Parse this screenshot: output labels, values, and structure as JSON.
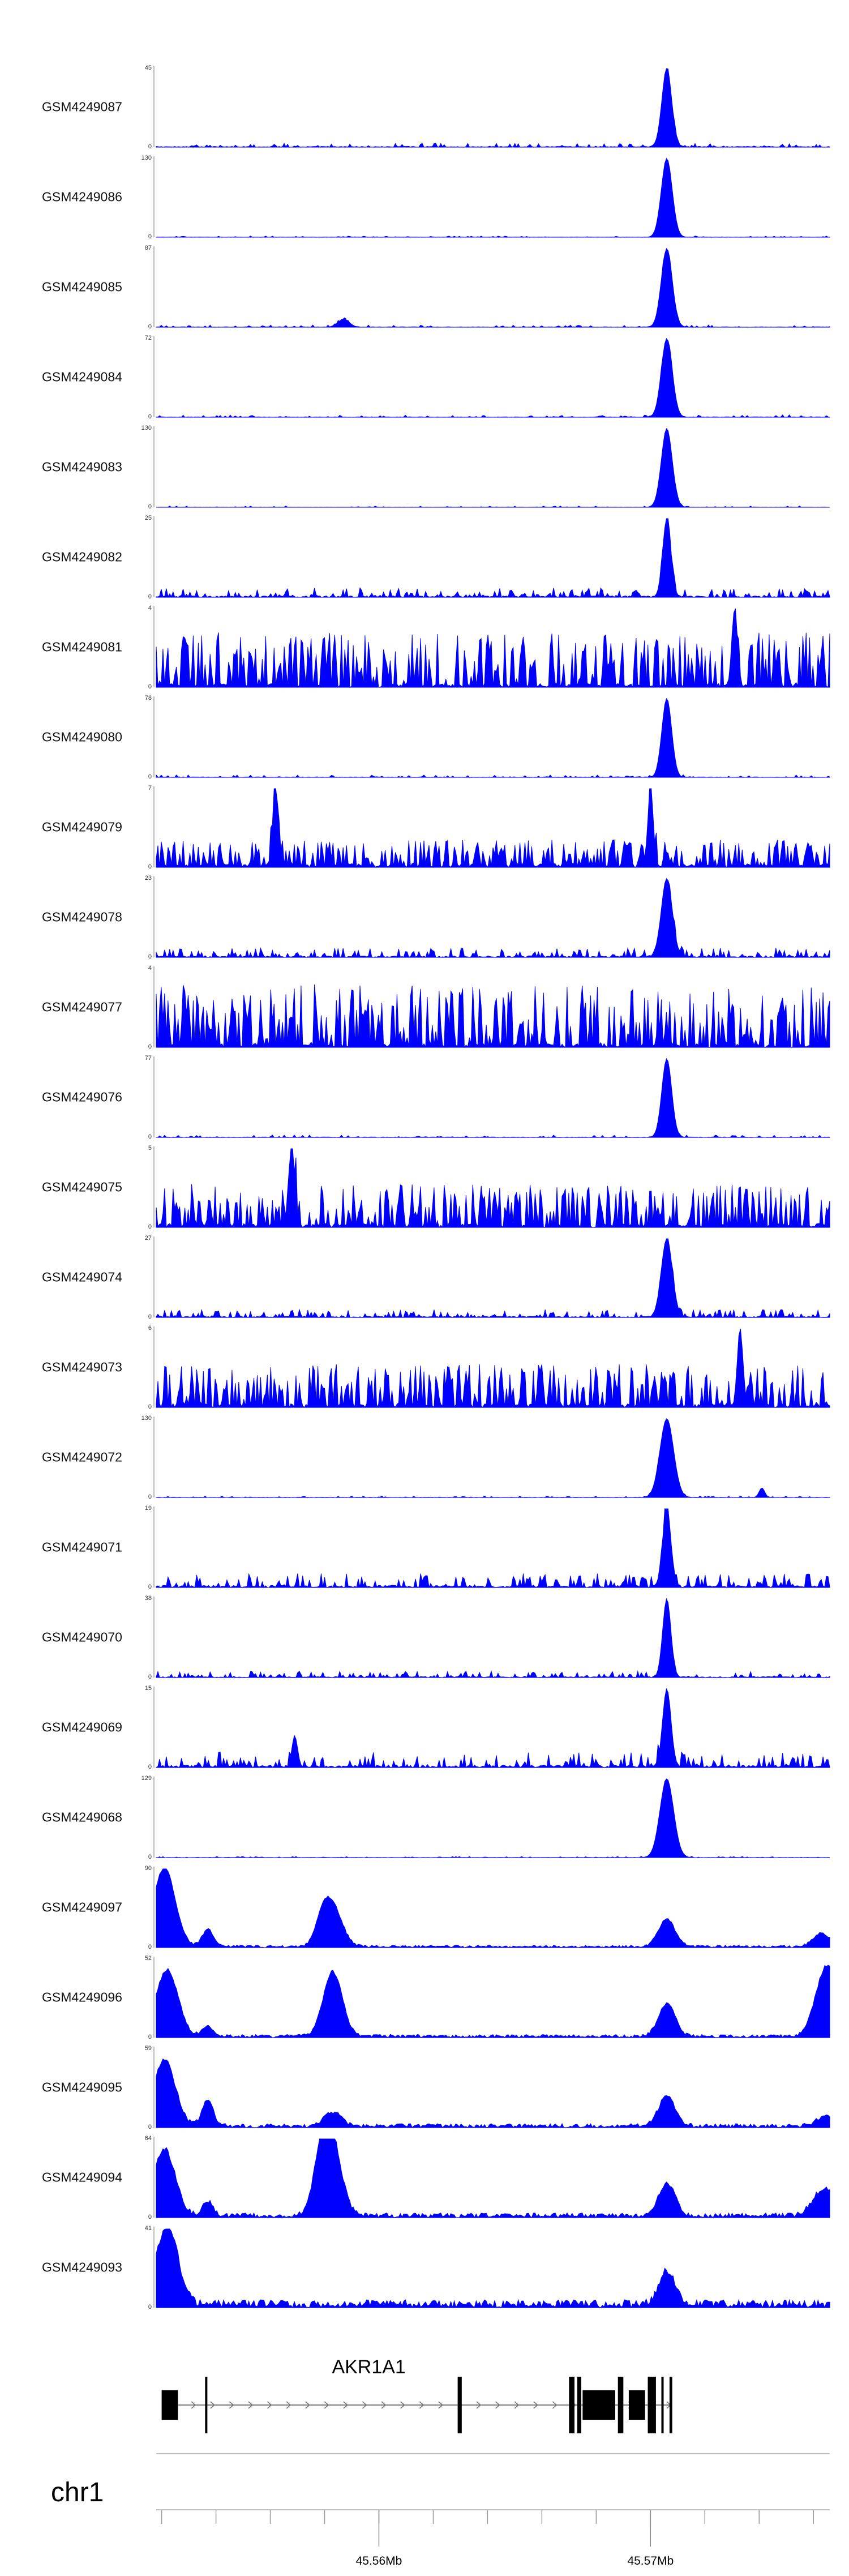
{
  "chart_data": {
    "type": "area",
    "color": "#0000ff",
    "x_range": [
      45.5518,
      45.5766
    ],
    "gene": {
      "name": "AKR1A1",
      "strand": "+",
      "exons": [
        [
          45.552,
          45.5526
        ],
        [
          45.5536,
          45.55365
        ],
        [
          45.5629,
          45.56305
        ],
        [
          45.567,
          45.5672
        ],
        [
          45.5673,
          45.56745
        ],
        [
          45.5675,
          45.5687
        ],
        [
          45.5688,
          45.569
        ],
        [
          45.5692,
          45.5698
        ],
        [
          45.5699,
          45.5702
        ],
        [
          45.5704,
          45.57045
        ],
        [
          45.5707,
          45.5708
        ]
      ]
    },
    "chromosome": "chr1",
    "axis_ticks": [
      {
        "value": 45.56,
        "label": "45.56Mb"
      },
      {
        "value": 45.57,
        "label": "45.57Mb"
      }
    ],
    "minor_ticks": [
      45.552,
      45.554,
      45.556,
      45.558,
      45.56,
      45.562,
      45.564,
      45.566,
      45.568,
      45.57,
      45.572,
      45.574,
      45.576
    ],
    "tracks": [
      {
        "name": "GSM4249087",
        "max": 45,
        "min": 0,
        "profile": "narrow",
        "noise": 0.05,
        "peaks": [
          [
            45.5706,
            1.0,
            0.00018
          ]
        ]
      },
      {
        "name": "GSM4249086",
        "max": 130,
        "min": 0,
        "profile": "narrow",
        "noise": 0.015,
        "peaks": [
          [
            45.5706,
            1.0,
            0.0002
          ]
        ]
      },
      {
        "name": "GSM4249085",
        "max": 87,
        "min": 0,
        "profile": "narrow",
        "noise": 0.03,
        "peaks": [
          [
            45.5706,
            1.0,
            0.0002
          ],
          [
            45.5587,
            0.1,
            0.0002
          ]
        ]
      },
      {
        "name": "GSM4249084",
        "max": 72,
        "min": 0,
        "profile": "narrow",
        "noise": 0.03,
        "peaks": [
          [
            45.5706,
            1.0,
            0.0002
          ]
        ]
      },
      {
        "name": "GSM4249083",
        "max": 130,
        "min": 0,
        "profile": "narrow",
        "noise": 0.015,
        "peaks": [
          [
            45.5706,
            1.0,
            0.0002
          ]
        ]
      },
      {
        "name": "GSM4249082",
        "max": 25,
        "min": 0,
        "profile": "sparse",
        "noise": 0.12,
        "peaks": [
          [
            45.5706,
            1.0,
            0.00015
          ]
        ]
      },
      {
        "name": "GSM4249081",
        "max": 4,
        "min": 0,
        "profile": "spiky",
        "noise": 0.7,
        "peaks": [
          [
            45.5731,
            1.0,
            0.0001
          ]
        ]
      },
      {
        "name": "GSM4249080",
        "max": 78,
        "min": 0,
        "profile": "narrow",
        "noise": 0.03,
        "peaks": [
          [
            45.5706,
            1.0,
            0.00018
          ]
        ]
      },
      {
        "name": "GSM4249079",
        "max": 7,
        "min": 0,
        "profile": "spiky",
        "noise": 0.35,
        "peaks": [
          [
            45.5562,
            1.0,
            0.0001
          ],
          [
            45.57,
            0.95,
            0.0001
          ]
        ]
      },
      {
        "name": "GSM4249078",
        "max": 23,
        "min": 0,
        "profile": "sparse",
        "noise": 0.12,
        "peaks": [
          [
            45.5706,
            1.0,
            0.0002
          ]
        ]
      },
      {
        "name": "GSM4249077",
        "max": 4,
        "min": 0,
        "profile": "spiky",
        "noise": 0.8,
        "peaks": []
      },
      {
        "name": "GSM4249076",
        "max": 77,
        "min": 0,
        "profile": "narrow",
        "noise": 0.03,
        "peaks": [
          [
            45.5706,
            1.0,
            0.00018
          ]
        ]
      },
      {
        "name": "GSM4249075",
        "max": 5,
        "min": 0,
        "profile": "spiky",
        "noise": 0.55,
        "peaks": [
          [
            45.5568,
            1.0,
            0.0001
          ]
        ]
      },
      {
        "name": "GSM4249074",
        "max": 27,
        "min": 0,
        "profile": "sparse",
        "noise": 0.1,
        "peaks": [
          [
            45.5706,
            1.0,
            0.0002
          ]
        ]
      },
      {
        "name": "GSM4249073",
        "max": 6,
        "min": 0,
        "profile": "spiky",
        "noise": 0.55,
        "peaks": [
          [
            45.5733,
            1.0,
            0.0001
          ]
        ]
      },
      {
        "name": "GSM4249072",
        "max": 130,
        "min": 0,
        "profile": "narrow",
        "noise": 0.02,
        "peaks": [
          [
            45.5706,
            1.0,
            0.00025
          ],
          [
            45.5741,
            0.12,
            0.0001
          ]
        ]
      },
      {
        "name": "GSM4249071",
        "max": 19,
        "min": 0,
        "profile": "sparse",
        "noise": 0.18,
        "peaks": [
          [
            45.5706,
            1.0,
            0.00015
          ]
        ]
      },
      {
        "name": "GSM4249070",
        "max": 38,
        "min": 0,
        "profile": "sparse",
        "noise": 0.08,
        "peaks": [
          [
            45.5706,
            1.0,
            0.00015
          ]
        ]
      },
      {
        "name": "GSM4249069",
        "max": 15,
        "min": 0,
        "profile": "sparse",
        "noise": 0.2,
        "peaks": [
          [
            45.5706,
            1.0,
            0.00015
          ],
          [
            45.5569,
            0.4,
            0.0001
          ]
        ]
      },
      {
        "name": "GSM4249068",
        "max": 129,
        "min": 0,
        "profile": "narrow",
        "noise": 0.015,
        "peaks": [
          [
            45.5706,
            1.0,
            0.00025
          ]
        ]
      },
      {
        "name": "GSM4249097",
        "max": 90,
        "min": 0,
        "profile": "broad",
        "noise": 0.03,
        "peaks": [
          [
            45.5521,
            1.0,
            0.0004
          ],
          [
            45.5537,
            0.22,
            0.0002
          ],
          [
            45.5579,
            0.28,
            0.00025
          ],
          [
            45.5583,
            0.5,
            0.00035
          ],
          [
            45.5706,
            0.35,
            0.0003
          ],
          [
            45.5763,
            0.17,
            0.0003
          ]
        ]
      },
      {
        "name": "GSM4249096",
        "max": 52,
        "min": 0,
        "profile": "broad",
        "noise": 0.04,
        "peaks": [
          [
            45.5522,
            0.85,
            0.0004
          ],
          [
            45.5537,
            0.12,
            0.0002
          ],
          [
            45.5583,
            0.82,
            0.00035
          ],
          [
            45.5706,
            0.42,
            0.0003
          ],
          [
            45.5765,
            0.9,
            0.0004
          ]
        ]
      },
      {
        "name": "GSM4249095",
        "max": 59,
        "min": 0,
        "profile": "broad",
        "noise": 0.05,
        "peaks": [
          [
            45.5521,
            0.85,
            0.0004
          ],
          [
            45.5537,
            0.35,
            0.0002
          ],
          [
            45.5583,
            0.18,
            0.0003
          ],
          [
            45.5706,
            0.38,
            0.0003
          ],
          [
            45.5764,
            0.12,
            0.0003
          ]
        ]
      },
      {
        "name": "GSM4249094",
        "max": 64,
        "min": 0,
        "profile": "broad",
        "noise": 0.06,
        "peaks": [
          [
            45.5521,
            0.85,
            0.0004
          ],
          [
            45.5537,
            0.18,
            0.0002
          ],
          [
            45.5579,
            0.72,
            0.0003
          ],
          [
            45.5583,
            0.82,
            0.00035
          ],
          [
            45.5706,
            0.42,
            0.0003
          ],
          [
            45.5764,
            0.35,
            0.0004
          ]
        ]
      },
      {
        "name": "GSM4249093",
        "max": 41,
        "min": 0,
        "profile": "broad",
        "noise": 0.1,
        "peaks": [
          [
            45.5522,
            1.0,
            0.0004
          ],
          [
            45.5706,
            0.42,
            0.0003
          ]
        ]
      }
    ]
  }
}
